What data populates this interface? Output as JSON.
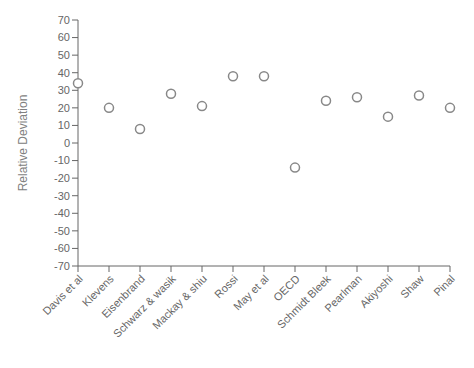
{
  "chart_data": {
    "type": "scatter",
    "categories": [
      "Davis et al",
      "Klevens",
      "Eisenbrand",
      "Schwarz & wasik",
      "Mackay & shiu",
      "Rossi",
      "May et al",
      "OECD",
      "Schmidt Bleek",
      "Pearlman",
      "Akiyoshi",
      "Shaw",
      "Pinal"
    ],
    "values": [
      34,
      20,
      8,
      28,
      21,
      38,
      38,
      -14,
      24,
      26,
      15,
      27,
      20
    ],
    "ylim": [
      -70,
      70
    ],
    "yticks": [
      -70,
      -60,
      -50,
      -40,
      -30,
      -20,
      -10,
      0,
      10,
      20,
      30,
      40,
      50,
      60,
      70
    ],
    "ylabel": "Relative Deviation",
    "marker": "circle",
    "color": "#888888",
    "grid": false
  }
}
